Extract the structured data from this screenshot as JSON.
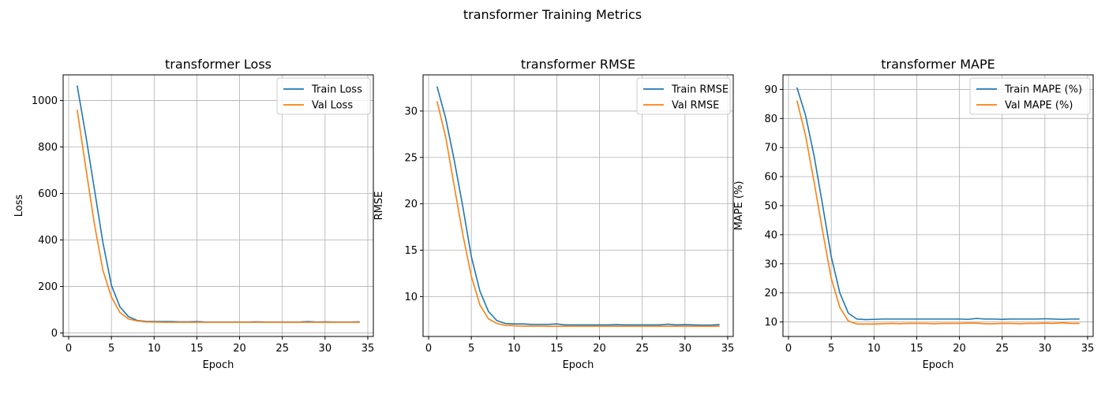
{
  "suptitle": "transformer Training Metrics",
  "colors": {
    "train": "#1f77b4",
    "val": "#ff7f0e"
  },
  "chart_data": [
    {
      "type": "line",
      "title": "transformer Loss",
      "xlabel": "Epoch",
      "ylabel": "Loss",
      "xlim": [
        -0.65,
        35.65
      ],
      "ylim": [
        -15,
        1110
      ],
      "xticks": [
        0,
        5,
        10,
        15,
        20,
        25,
        30,
        35
      ],
      "yticks": [
        0,
        200,
        400,
        600,
        800,
        1000
      ],
      "grid": true,
      "legend": "top-right",
      "x": [
        1,
        2,
        3,
        4,
        5,
        6,
        7,
        8,
        9,
        10,
        11,
        12,
        13,
        14,
        15,
        16,
        17,
        18,
        19,
        20,
        21,
        22,
        23,
        24,
        25,
        26,
        27,
        28,
        29,
        30,
        31,
        32,
        33,
        34
      ],
      "series": [
        {
          "name": "Train Loss",
          "color": "#1f77b4",
          "values": [
            1062,
            850,
            620,
            390,
            205,
            112,
            70,
            54,
            50,
            49,
            49,
            49,
            48,
            48,
            49,
            47,
            47,
            47,
            47,
            47,
            47,
            48,
            47,
            47,
            47,
            47,
            47,
            49,
            47,
            48,
            47,
            47,
            47,
            48
          ]
        },
        {
          "name": "Val Loss",
          "color": "#ff7f0e",
          "values": [
            958,
            710,
            470,
            270,
            155,
            88,
            60,
            52,
            48,
            47,
            46,
            46,
            46,
            46,
            46,
            46,
            46,
            46,
            46,
            46,
            46,
            46,
            46,
            46,
            46,
            46,
            46,
            46,
            46,
            46,
            46,
            46,
            46,
            46
          ]
        }
      ]
    },
    {
      "type": "line",
      "title": "transformer RMSE",
      "xlabel": "Epoch",
      "ylabel": "RMSE",
      "xlim": [
        -0.65,
        35.65
      ],
      "ylim": [
        5.7,
        33.9
      ],
      "xticks": [
        0,
        5,
        10,
        15,
        20,
        25,
        30,
        35
      ],
      "yticks": [
        10,
        15,
        20,
        25,
        30
      ],
      "grid": true,
      "legend": "top-right",
      "x": [
        1,
        2,
        3,
        4,
        5,
        6,
        7,
        8,
        9,
        10,
        11,
        12,
        13,
        14,
        15,
        16,
        17,
        18,
        19,
        20,
        21,
        22,
        23,
        24,
        25,
        26,
        27,
        28,
        29,
        30,
        31,
        32,
        33,
        34
      ],
      "series": [
        {
          "name": "Train RMSE",
          "color": "#1f77b4",
          "values": [
            32.6,
            29.2,
            24.7,
            19.7,
            14.3,
            10.6,
            8.4,
            7.4,
            7.1,
            7.05,
            7.05,
            7.0,
            7.0,
            7.0,
            7.05,
            6.95,
            6.95,
            6.95,
            6.95,
            6.95,
            6.95,
            6.98,
            6.95,
            6.95,
            6.95,
            6.95,
            6.95,
            7.02,
            6.95,
            6.98,
            6.95,
            6.93,
            6.93,
            6.98
          ]
        },
        {
          "name": "Val RMSE",
          "color": "#ff7f0e",
          "values": [
            31.0,
            27.2,
            21.9,
            16.7,
            12.2,
            9.1,
            7.6,
            7.1,
            6.9,
            6.85,
            6.82,
            6.82,
            6.82,
            6.8,
            6.8,
            6.8,
            6.8,
            6.8,
            6.8,
            6.8,
            6.8,
            6.8,
            6.8,
            6.8,
            6.8,
            6.8,
            6.8,
            6.8,
            6.8,
            6.8,
            6.8,
            6.8,
            6.8,
            6.8
          ]
        }
      ]
    },
    {
      "type": "line",
      "title": "transformer MAPE",
      "xlabel": "Epoch",
      "ylabel": "MAPE (%)",
      "xlim": [
        -0.65,
        35.65
      ],
      "ylim": [
        5.0,
        95.0
      ],
      "xticks": [
        0,
        5,
        10,
        15,
        20,
        25,
        30,
        35
      ],
      "yticks": [
        10,
        20,
        30,
        40,
        50,
        60,
        70,
        80,
        90
      ],
      "grid": true,
      "legend": "top-right",
      "x": [
        1,
        2,
        3,
        4,
        5,
        6,
        7,
        8,
        9,
        10,
        11,
        12,
        13,
        14,
        15,
        16,
        17,
        18,
        19,
        20,
        21,
        22,
        23,
        24,
        25,
        26,
        27,
        28,
        29,
        30,
        31,
        32,
        33,
        34
      ],
      "series": [
        {
          "name": "Train MAPE (%)",
          "color": "#1f77b4",
          "values": [
            90.5,
            81.0,
            67.0,
            50.0,
            32.5,
            20.0,
            13.0,
            11.0,
            10.8,
            10.9,
            11.0,
            11.0,
            11.0,
            11.0,
            11.0,
            11.0,
            11.0,
            11.0,
            11.0,
            11.0,
            10.9,
            11.2,
            11.0,
            11.0,
            10.9,
            11.0,
            11.0,
            11.0,
            11.0,
            11.1,
            11.0,
            10.9,
            11.0,
            11.0
          ]
        },
        {
          "name": "Val MAPE (%)",
          "color": "#ff7f0e",
          "values": [
            86.0,
            74.0,
            58.0,
            41.0,
            25.0,
            15.0,
            10.3,
            9.3,
            9.3,
            9.3,
            9.4,
            9.5,
            9.4,
            9.5,
            9.5,
            9.5,
            9.4,
            9.5,
            9.5,
            9.5,
            9.6,
            9.6,
            9.4,
            9.4,
            9.5,
            9.5,
            9.4,
            9.5,
            9.5,
            9.6,
            9.5,
            9.7,
            9.5,
            9.5
          ]
        }
      ]
    }
  ]
}
